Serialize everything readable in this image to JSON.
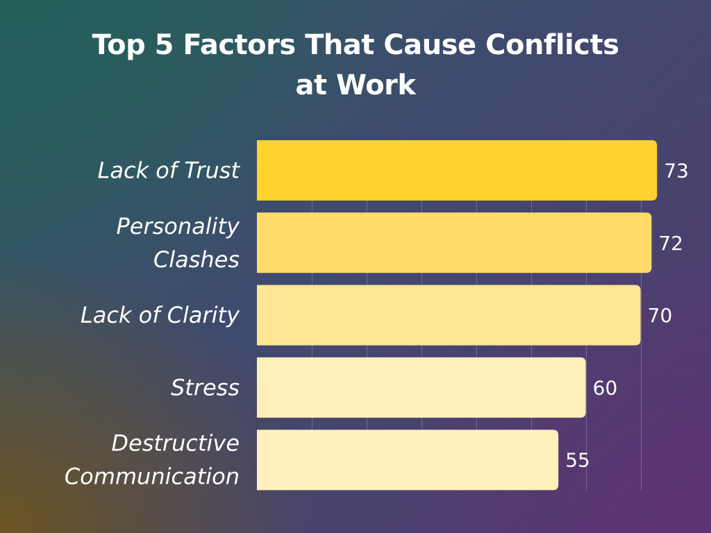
{
  "chart_data": {
    "type": "bar",
    "orientation": "horizontal",
    "title_lines": [
      "Top 5 Factors That Cause Conflicts",
      "at Work"
    ],
    "categories": [
      [
        "Lack of Trust"
      ],
      [
        "Personality",
        "Clashes"
      ],
      [
        "Lack of Clarity"
      ],
      [
        "Stress"
      ],
      [
        "Destructive",
        "Communication"
      ]
    ],
    "values": [
      73,
      72,
      70,
      60,
      55
    ],
    "value_labels": [
      "73",
      "72",
      "70",
      "60",
      "55"
    ],
    "xlim": [
      0,
      76
    ],
    "grid": true,
    "bar_colors": [
      "#FFD22E",
      "#FFDC6A",
      "#FFE694",
      "#FFEFB8",
      "#FFF0BE"
    ]
  }
}
